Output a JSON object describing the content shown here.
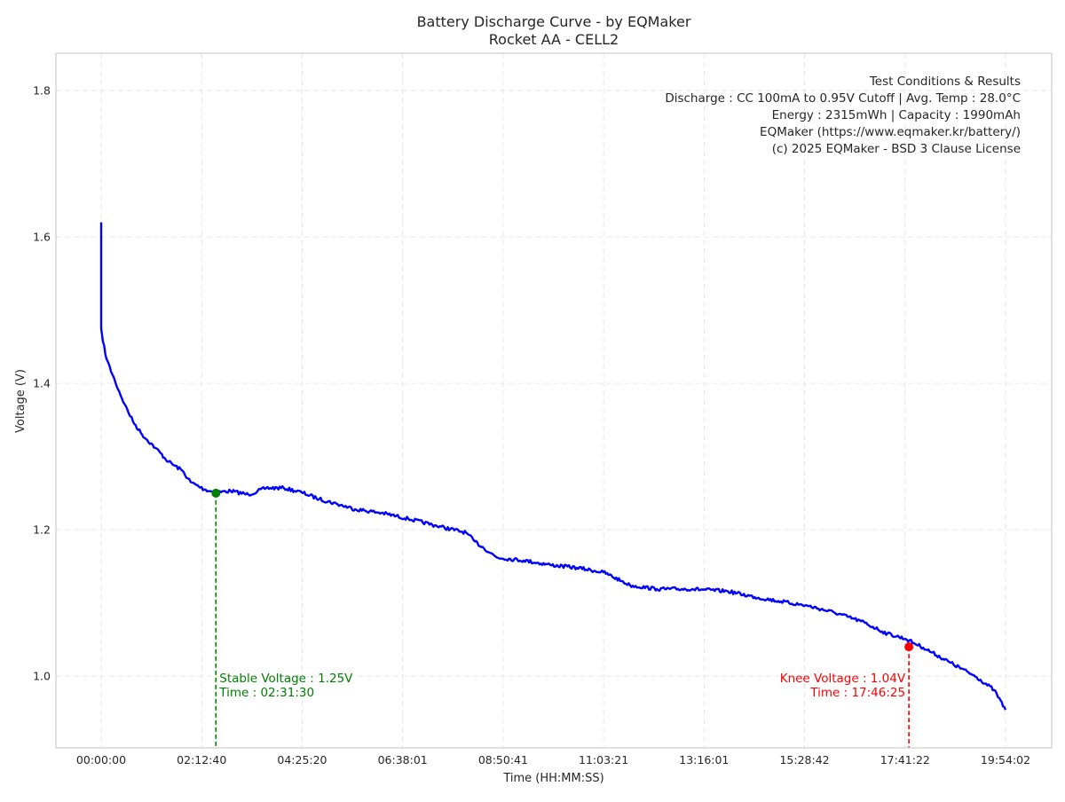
{
  "chart_data": {
    "type": "line",
    "title": "Battery Discharge Curve - by EQMaker",
    "subtitle": "Rocket AA - CELL2",
    "xlabel": "Time (HH:MM:SS)",
    "ylabel": "Voltage (V)",
    "x_unit": "hours",
    "xlim": [
      -1.0,
      20.9
    ],
    "ylim": [
      0.902,
      1.851
    ],
    "grid": true,
    "x_ticks": [
      0,
      2.2112,
      4.4224,
      6.6336,
      8.8447,
      11.0559,
      13.2671,
      15.4783,
      17.6895,
      19.9006
    ],
    "x_tick_labels": [
      "00:00:00",
      "02:12:40",
      "04:25:20",
      "06:38:01",
      "08:50:41",
      "11:03:21",
      "13:16:01",
      "15:28:42",
      "17:41:22",
      "19:54:02"
    ],
    "y_ticks": [
      1.0,
      1.2,
      1.4,
      1.6,
      1.8
    ],
    "y_tick_labels": [
      "1.0",
      "1.2",
      "1.4",
      "1.6",
      "1.8"
    ],
    "series": [
      {
        "name": "Voltage",
        "color": "#0000ff",
        "x": [
          0,
          0,
          0.04,
          0.12,
          0.31,
          0.51,
          0.7,
          0.9,
          1.19,
          1.48,
          1.78,
          1.97,
          2.27,
          2.52,
          2.85,
          3.24,
          3.63,
          4.02,
          4.41,
          4.8,
          5.2,
          5.59,
          6.17,
          6.76,
          7.34,
          8.03,
          8.22,
          8.42,
          8.71,
          9.3,
          9.88,
          10.47,
          11.05,
          11.45,
          11.64,
          12.23,
          13.01,
          13.79,
          14.38,
          14.96,
          15.55,
          16.13,
          16.72,
          17.3,
          17.7,
          18.09,
          18.67,
          19.26,
          19.65,
          19.9
        ],
        "y": [
          1.62,
          1.475,
          1.457,
          1.433,
          1.402,
          1.372,
          1.348,
          1.33,
          1.312,
          1.293,
          1.281,
          1.265,
          1.255,
          1.251,
          1.253,
          1.248,
          1.257,
          1.257,
          1.251,
          1.242,
          1.235,
          1.228,
          1.223,
          1.215,
          1.206,
          1.196,
          1.184,
          1.175,
          1.162,
          1.158,
          1.152,
          1.148,
          1.142,
          1.13,
          1.124,
          1.119,
          1.119,
          1.116,
          1.108,
          1.102,
          1.096,
          1.087,
          1.075,
          1.058,
          1.051,
          1.039,
          1.019,
          0.999,
          0.981,
          0.954
        ]
      }
    ],
    "annotations": {
      "stable": {
        "x": 2.525,
        "y": 1.25,
        "color": "#008000",
        "line1": "Stable Voltage : 1.25V",
        "line2": "Time : 02:31:30"
      },
      "knee": {
        "x": 17.774,
        "y": 1.04,
        "color": "#ff0000",
        "line1": "Knee Voltage : 1.04V",
        "line2": "Time : 17:46:25"
      }
    },
    "info_box": [
      "Test Conditions & Results",
      "Discharge : CC 100mA to 0.95V Cutoff | Avg. Temp : 28.0°C",
      "Energy : 2315mWh | Capacity : 1990mAh",
      "EQMaker (https://www.eqmaker.kr/battery/)",
      "(c) 2025 EQMaker - BSD 3 Clause License"
    ]
  }
}
